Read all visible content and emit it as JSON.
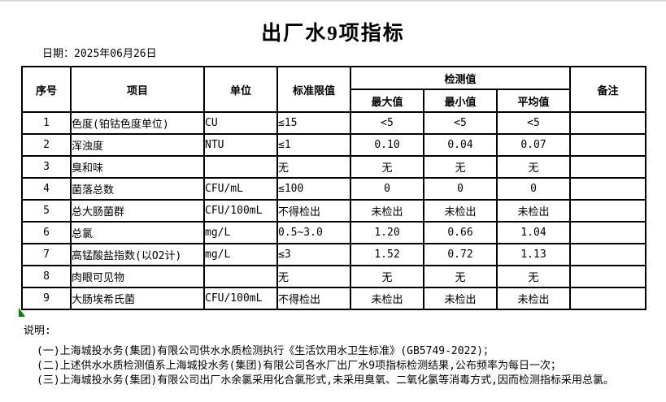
{
  "page": {
    "title": "出厂水9项指标",
    "date_label": "日期：2025年06月26日"
  },
  "table": {
    "headers": {
      "index": "序号",
      "item": "项目",
      "unit": "单位",
      "standard_limit": "标准限值",
      "detection_value": "检测值",
      "max": "最大值",
      "min": "最小值",
      "avg": "平均值",
      "remarks": "备注"
    },
    "rows": [
      {
        "no": "1",
        "item": "色度(铂钴色度单位)",
        "unit": "CU",
        "limit": "≤15",
        "max": "<5",
        "min": "<5",
        "avg": "<5",
        "remark": ""
      },
      {
        "no": "2",
        "item": "浑浊度",
        "unit": "NTU",
        "limit": "≤1",
        "max": "0.10",
        "min": "0.04",
        "avg": "0.07",
        "remark": ""
      },
      {
        "no": "3",
        "item": "臭和味",
        "unit": "",
        "limit": "无",
        "max": "无",
        "min": "无",
        "avg": "无",
        "remark": ""
      },
      {
        "no": "4",
        "item": "菌落总数",
        "unit": "CFU/mL",
        "limit": "≤100",
        "max": "0",
        "min": "0",
        "avg": "0",
        "remark": ""
      },
      {
        "no": "5",
        "item": "总大肠菌群",
        "unit": "CFU/100mL",
        "limit": "不得检出",
        "max": "未检出",
        "min": "未检出",
        "avg": "未检出",
        "remark": ""
      },
      {
        "no": "6",
        "item": "总氯",
        "unit": "mg/L",
        "limit": "0.5~3.0",
        "max": "1.20",
        "min": "0.66",
        "avg": "1.04",
        "remark": ""
      },
      {
        "no": "7",
        "item": "高锰酸盐指数(以O2计)",
        "unit": "mg/L",
        "limit": "≤3",
        "max": "1.52",
        "min": "0.72",
        "avg": "1.13",
        "remark": ""
      },
      {
        "no": "8",
        "item": "肉眼可见物",
        "unit": "",
        "limit": "无",
        "max": "无",
        "min": "无",
        "avg": "无",
        "remark": ""
      },
      {
        "no": "9",
        "item": "大肠埃希氏菌",
        "unit": "CFU/100mL",
        "limit": "不得检出",
        "max": "未检出",
        "min": "未检出",
        "avg": "未检出",
        "remark": ""
      }
    ]
  },
  "notes": {
    "label": "说明:",
    "items": [
      "(一)上海城投水务(集团)有限公司供水水质检测执行《生活饮用水卫生标准》(GB5749-2022)；",
      "(二)上述供水水质检测值系上海城投水务(集团)有限公司各水厂出厂水9项指标检测结果,公布频率为每日一次；",
      "(三)上海城投水务(集团)有限公司出厂水余氯采用化合氯形式,未采用臭氧、二氧化氯等消毒方式,因而检测指标采用总氯。"
    ]
  },
  "colors": {
    "border": "#000000",
    "corner_marker_green": "#008000",
    "top_edge_gray": "#d9d9d9",
    "background": "#ffffff"
  }
}
